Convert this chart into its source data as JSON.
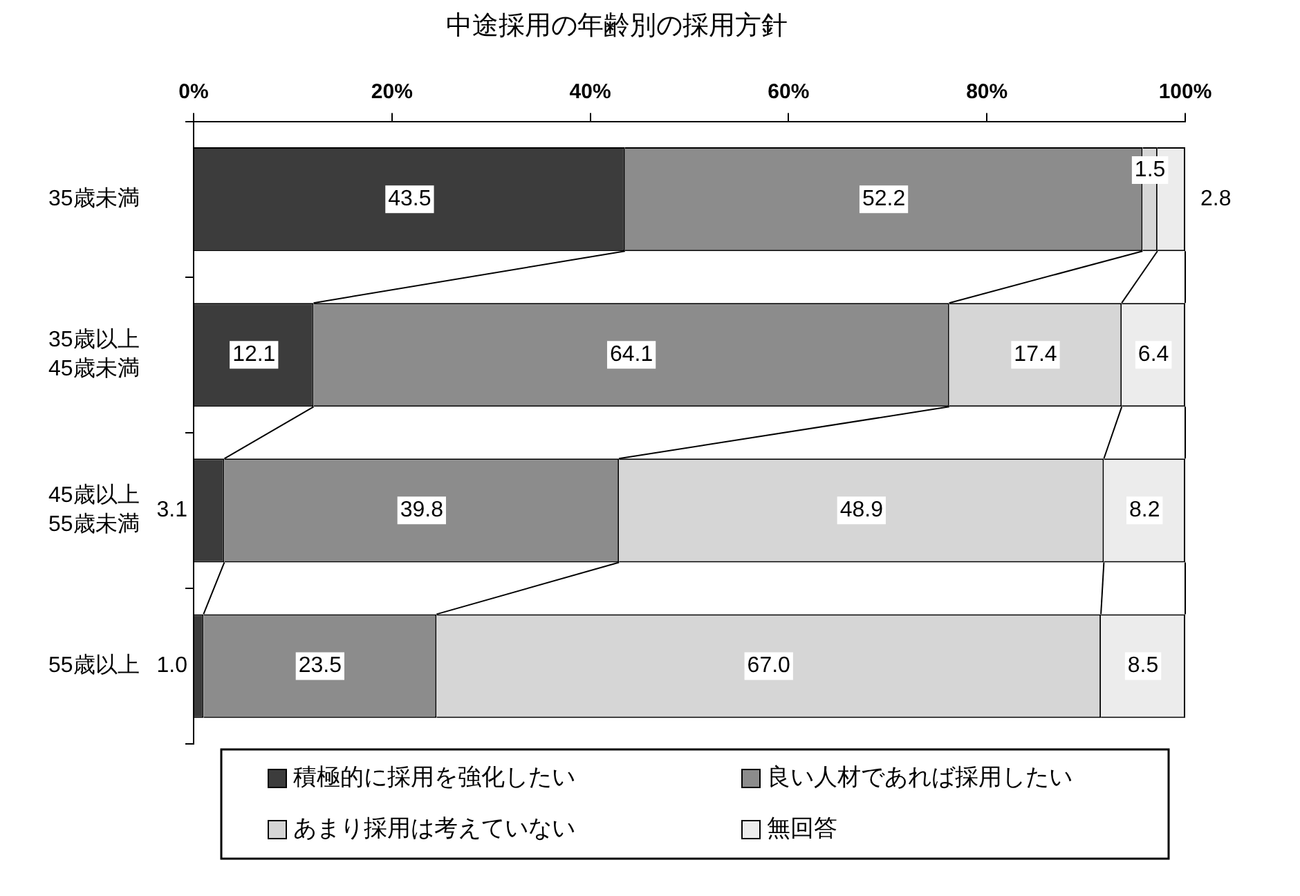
{
  "chart_data": {
    "type": "bar",
    "title": "中途採用の年齢別の採用方針",
    "orientation": "horizontal",
    "stacked": true,
    "categories": [
      "35歳未満",
      "35歳以上\n45歳未満",
      "45歳以上\n55歳未満",
      "55歳以上"
    ],
    "series": [
      {
        "name": "積極的に採用を強化したい",
        "color": "#3c3c3c",
        "values": [
          43.5,
          12.1,
          3.1,
          1.0
        ],
        "value_labels": [
          "43.5",
          "12.1",
          "3.1",
          "1.0"
        ]
      },
      {
        "name": "良い人材であれば採用したい",
        "color": "#8c8c8c",
        "values": [
          52.2,
          64.1,
          39.8,
          23.5
        ],
        "value_labels": [
          "52.2",
          "64.1",
          "39.8",
          "23.5"
        ]
      },
      {
        "name": "あまり採用は考えていない",
        "color": "#d6d6d6",
        "values": [
          1.5,
          17.4,
          48.9,
          67.0
        ],
        "value_labels": [
          "1.5",
          "17.4",
          "48.9",
          "67.0"
        ]
      },
      {
        "name": "無回答",
        "color": "#ececec",
        "values": [
          2.8,
          6.4,
          8.2,
          8.5
        ],
        "value_labels": [
          "2.8",
          "6.4",
          "8.2",
          "8.5"
        ]
      }
    ],
    "xlim": [
      0,
      100
    ],
    "xticks": [
      {
        "value": 0,
        "label": "0%"
      },
      {
        "value": 20,
        "label": "20%"
      },
      {
        "value": 40,
        "label": "40%"
      },
      {
        "value": 60,
        "label": "60%"
      },
      {
        "value": 80,
        "label": "80%"
      },
      {
        "value": 100,
        "label": "100%"
      }
    ],
    "legend": "bottom"
  }
}
